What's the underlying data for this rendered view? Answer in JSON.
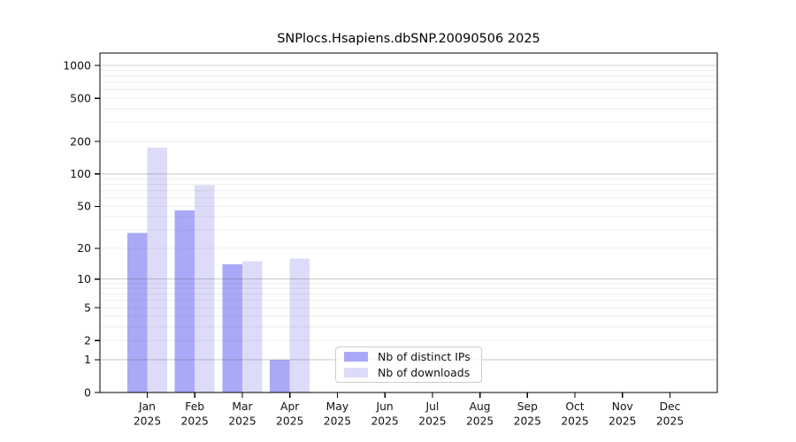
{
  "title": "SNPlocs.Hsapiens.dbSNP.20090506 2025",
  "colors": {
    "distinct_ips_bar": "#a9a9f8",
    "downloads_bar": "#dcdcf8",
    "major_grid": "rgba(80,80,80,0.28)",
    "minor_grid": "rgba(80,80,80,0.10)",
    "axis": "#000000"
  },
  "legend": {
    "items": [
      {
        "label": "Nb of distinct IPs",
        "color": "#a9a9f8"
      },
      {
        "label": "Nb of downloads",
        "color": "#dcdcf8"
      }
    ]
  },
  "chart_data": {
    "type": "bar",
    "title": "SNPlocs.Hsapiens.dbSNP.20090506 2025",
    "categories": [
      "Jan",
      "Feb",
      "Mar",
      "Apr",
      "May",
      "Jun",
      "Jul",
      "Aug",
      "Sep",
      "Oct",
      "Nov",
      "Dec"
    ],
    "year": "2025",
    "series": [
      {
        "name": "Nb of distinct IPs",
        "color": "#a9a9f8",
        "values": [
          28,
          46,
          14,
          1,
          0,
          0,
          0,
          0,
          0,
          0,
          0,
          0
        ]
      },
      {
        "name": "Nb of downloads",
        "color": "#dcdcf8",
        "values": [
          175,
          79,
          15,
          16,
          0,
          0,
          0,
          0,
          0,
          0,
          0,
          0
        ]
      }
    ],
    "yscale": "log10(value+1)",
    "yticks": [
      0,
      1,
      2,
      5,
      10,
      20,
      50,
      100,
      200,
      500,
      1000
    ],
    "ylim": [
      0,
      1001
    ],
    "xlabel": "",
    "ylabel": "",
    "grid": "horizontal major+minor, drawn over bars",
    "legend_position": "inside lower-center"
  }
}
